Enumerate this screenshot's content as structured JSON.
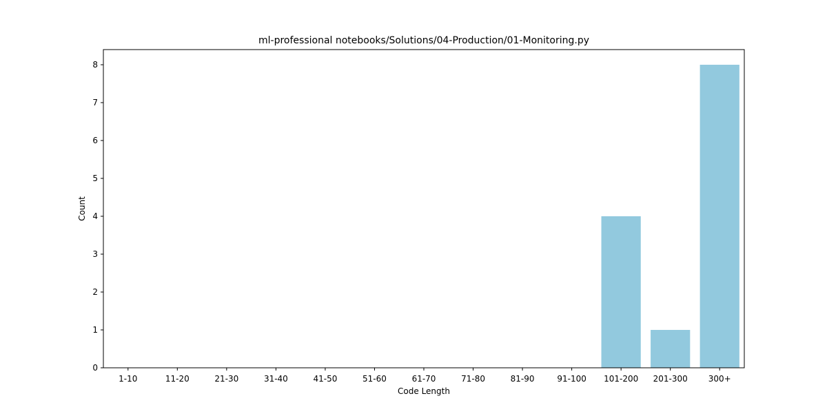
{
  "chart_data": {
    "type": "bar",
    "title": "ml-professional notebooks/Solutions/04-Production/01-Monitoring.py",
    "xlabel": "Code Length",
    "ylabel": "Count",
    "categories": [
      "1-10",
      "11-20",
      "21-30",
      "31-40",
      "41-50",
      "51-60",
      "61-70",
      "71-80",
      "81-90",
      "91-100",
      "101-200",
      "201-300",
      "300+"
    ],
    "values": [
      0,
      0,
      0,
      0,
      0,
      0,
      0,
      0,
      0,
      0,
      4,
      1,
      8
    ],
    "ylim": [
      0,
      8.4
    ],
    "yticks": [
      0,
      1,
      2,
      3,
      4,
      5,
      6,
      7,
      8
    ],
    "grid": false,
    "bar_color": "#92c9de"
  }
}
